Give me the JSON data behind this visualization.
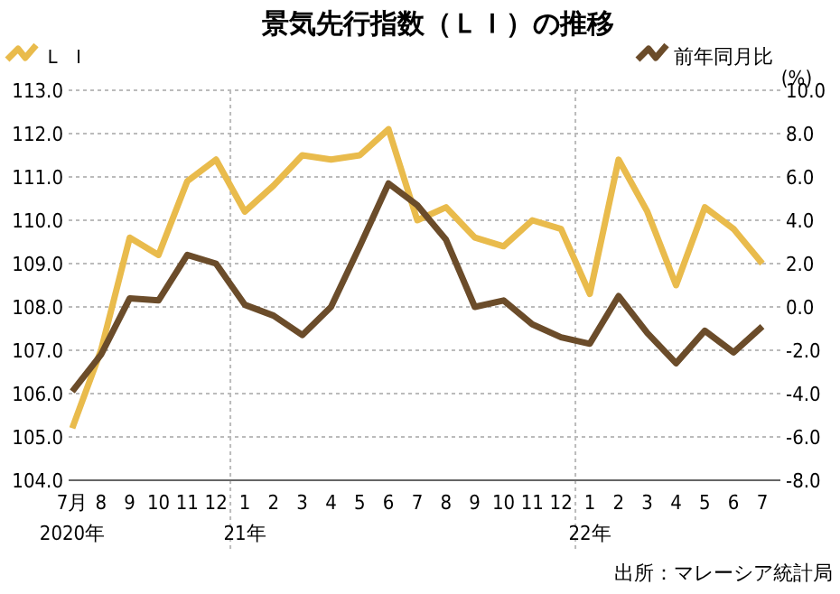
{
  "chart_data": {
    "type": "line",
    "title": "景気先行指数（ＬＩ）の推移",
    "y2label": "(%)",
    "legend": "top",
    "grid": "y",
    "line_style": "solid",
    "marker": "none",
    "categories": [
      "7月\n2020年",
      "8",
      "9",
      "10",
      "11",
      "12",
      "1\n21年",
      "2",
      "3",
      "4",
      "5",
      "6",
      "7",
      "8",
      "9",
      "10",
      "11",
      "12",
      "1\n22年",
      "2",
      "3",
      "4",
      "5",
      "6",
      "7"
    ],
    "series": [
      {
        "name": "Ｌ Ｉ",
        "color": "#e9bb4c",
        "values": [
          105.2,
          107.0,
          109.6,
          109.2,
          110.9,
          111.4,
          110.2,
          110.8,
          111.5,
          111.4,
          111.5,
          112.1,
          110.0,
          110.3,
          109.6,
          109.4,
          110.0,
          109.8,
          108.3,
          111.4,
          110.2,
          108.5,
          110.3,
          109.8,
          109.0
        ]
      },
      {
        "name": "前年同月比",
        "color": "#6b4c2a",
        "axis": "y2",
        "values": [
          -3.9,
          -2.2,
          0.4,
          0.3,
          2.4,
          2.0,
          0.1,
          -0.4,
          -1.3,
          0.0,
          2.8,
          5.7,
          4.7,
          3.1,
          0.0,
          0.3,
          -0.8,
          -1.4,
          -1.7,
          0.5,
          -1.2,
          -2.6,
          -1.1,
          -2.1,
          -0.9
        ]
      }
    ],
    "ylim": [
      104,
      113
    ],
    "yticks": [
      {
        "value": 104,
        "label": "104.0"
      },
      {
        "value": 105,
        "label": "105.0"
      },
      {
        "value": 106,
        "label": "106.0"
      },
      {
        "value": 107,
        "label": "107.0"
      },
      {
        "value": 108,
        "label": "108.0"
      },
      {
        "value": 109,
        "label": "109.0"
      },
      {
        "value": 110,
        "label": "110.0"
      },
      {
        "value": 111,
        "label": "111.0"
      },
      {
        "value": 112,
        "label": "112.0"
      },
      {
        "value": 113,
        "label": "113.0"
      }
    ],
    "y2lim": [
      -8,
      10
    ],
    "y2ticks": [
      {
        "value": -8,
        "label": "-8.0"
      },
      {
        "value": -6,
        "label": "-6.0"
      },
      {
        "value": -4,
        "label": "-4.0"
      },
      {
        "value": -2,
        "label": "-2.0"
      },
      {
        "value": 0,
        "label": "0.0"
      },
      {
        "value": 2,
        "label": "2.0"
      },
      {
        "value": 4,
        "label": "4.0"
      },
      {
        "value": 6,
        "label": "6.0"
      },
      {
        "value": 8,
        "label": "8.0"
      },
      {
        "value": 10,
        "label": "10.0"
      }
    ],
    "annotations": [
      "出所：マレーシア統計局"
    ]
  }
}
